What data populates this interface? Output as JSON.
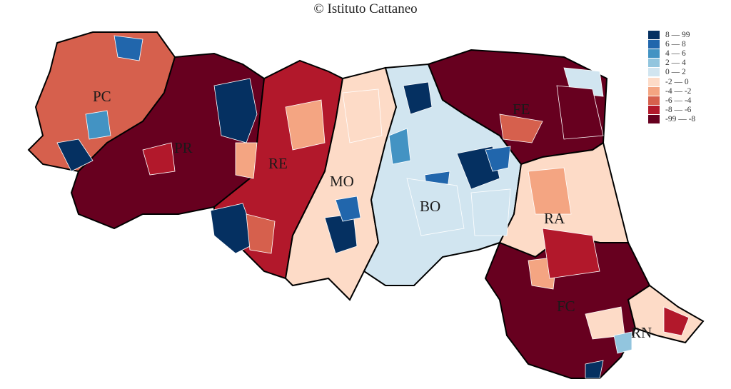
{
  "title": "© Istituto Cattaneo",
  "legend": [
    {
      "label": "8 — 99",
      "color": "#053061"
    },
    {
      "label": "6 — 8",
      "color": "#2166ac"
    },
    {
      "label": "4 — 6",
      "color": "#4393c3"
    },
    {
      "label": "2 — 4",
      "color": "#92c5de"
    },
    {
      "label": "0 — 2",
      "color": "#d1e5f0"
    },
    {
      "label": "-2 — 0",
      "color": "#fddbc7"
    },
    {
      "label": "-4 — -2",
      "color": "#f4a582"
    },
    {
      "label": "-6 — -4",
      "color": "#d6604d"
    },
    {
      "label": "-8 — -6",
      "color": "#b2182b"
    },
    {
      "label": "-99 — -8",
      "color": "#67001f"
    }
  ],
  "provinces": [
    {
      "code": "PC",
      "dominant_class": 7
    },
    {
      "code": "PR",
      "dominant_class": 9
    },
    {
      "code": "RE",
      "dominant_class": 8
    },
    {
      "code": "MO",
      "dominant_class": 5
    },
    {
      "code": "BO",
      "dominant_class": 4
    },
    {
      "code": "FE",
      "dominant_class": 9
    },
    {
      "code": "RA",
      "dominant_class": 5
    },
    {
      "code": "FC",
      "dominant_class": 9
    },
    {
      "code": "RN",
      "dominant_class": 5
    }
  ]
}
